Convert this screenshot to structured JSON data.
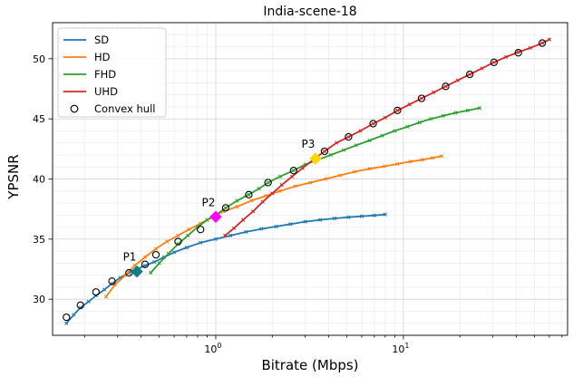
{
  "chart_data": {
    "type": "line",
    "title": "India-scene-18",
    "xlabel": "Bitrate (Mbps)",
    "ylabel": "YPSNR",
    "xscale": "log",
    "xlim": [
      0.135,
      75
    ],
    "ylim": [
      27,
      53
    ],
    "xticks": [
      {
        "value": 1,
        "label": "10",
        "sup": "0"
      },
      {
        "value": 10,
        "label": "10",
        "sup": "1"
      }
    ],
    "yticks": [
      30,
      35,
      40,
      45,
      50
    ],
    "grid": true,
    "legend_position": "top-left",
    "series": [
      {
        "name": "SD",
        "color": "#1f77b4",
        "x": [
          0.16,
          0.175,
          0.19,
          0.21,
          0.23,
          0.255,
          0.28,
          0.31,
          0.345,
          0.38,
          0.42,
          0.47,
          0.53,
          0.6,
          0.7,
          0.83,
          1.0,
          1.2,
          1.45,
          1.75,
          2.1,
          2.5,
          3.0,
          3.6,
          4.3,
          5.1,
          6.0,
          7.0,
          8.0
        ],
        "y": [
          28.0,
          28.7,
          29.3,
          29.8,
          30.3,
          30.8,
          31.3,
          31.8,
          32.2,
          32.5,
          32.8,
          33.1,
          33.5,
          33.9,
          34.3,
          34.7,
          35.0,
          35.3,
          35.6,
          35.85,
          36.05,
          36.25,
          36.45,
          36.6,
          36.72,
          36.82,
          36.9,
          36.97,
          37.05
        ]
      },
      {
        "name": "HD",
        "color": "#ff7f0e",
        "x": [
          0.26,
          0.29,
          0.33,
          0.37,
          0.42,
          0.48,
          0.55,
          0.63,
          0.72,
          0.83,
          0.95,
          1.1,
          1.3,
          1.55,
          1.85,
          2.2,
          2.65,
          3.2,
          3.85,
          4.6,
          5.5,
          6.6,
          7.9,
          9.3,
          10.9,
          12.6,
          14.3,
          16.0
        ],
        "y": [
          30.2,
          31.2,
          32.0,
          32.8,
          33.5,
          34.2,
          34.8,
          35.3,
          35.8,
          36.3,
          36.8,
          37.3,
          37.7,
          38.2,
          38.6,
          39.0,
          39.4,
          39.7,
          40.0,
          40.3,
          40.6,
          40.85,
          41.05,
          41.25,
          41.45,
          41.6,
          41.75,
          41.9
        ]
      },
      {
        "name": "FHD",
        "color": "#2ca02c",
        "x": [
          0.45,
          0.5,
          0.56,
          0.63,
          0.71,
          0.8,
          0.9,
          1.0,
          1.13,
          1.3,
          1.5,
          1.7,
          1.9,
          2.2,
          2.6,
          3.0,
          3.5,
          4.1,
          4.8,
          5.6,
          6.6,
          7.7,
          9.0,
          10.5,
          12.2,
          14.0,
          16.3,
          19.0,
          22.0,
          25.5
        ],
        "y": [
          32.2,
          33.0,
          33.8,
          34.6,
          35.3,
          36.0,
          36.6,
          37.0,
          37.6,
          38.2,
          38.7,
          39.2,
          39.7,
          40.2,
          40.7,
          41.2,
          41.6,
          42.0,
          42.4,
          42.8,
          43.2,
          43.6,
          44.0,
          44.35,
          44.7,
          45.0,
          45.25,
          45.5,
          45.7,
          45.9
        ]
      },
      {
        "name": "UHD",
        "color": "#d62728",
        "x": [
          1.12,
          1.25,
          1.4,
          1.58,
          1.78,
          2.0,
          2.25,
          2.55,
          2.9,
          3.3,
          3.8,
          4.4,
          5.1,
          5.9,
          6.9,
          8.0,
          9.3,
          10.8,
          12.5,
          14.5,
          16.8,
          19.5,
          22.6,
          26.2,
          30.4,
          35.3,
          41.0,
          47.5,
          55.0,
          60.0
        ],
        "y": [
          35.3,
          35.9,
          36.6,
          37.3,
          38.1,
          38.8,
          39.5,
          40.2,
          40.9,
          41.6,
          42.3,
          43.0,
          43.5,
          44.0,
          44.6,
          45.1,
          45.7,
          46.2,
          46.7,
          47.2,
          47.7,
          48.2,
          48.7,
          49.2,
          49.7,
          50.15,
          50.55,
          50.9,
          51.3,
          51.6
        ]
      }
    ],
    "convex_hull": {
      "name": "Convex hull",
      "x": [
        0.16,
        0.19,
        0.23,
        0.28,
        0.345,
        0.42,
        0.48,
        0.63,
        0.83,
        1.13,
        1.5,
        1.9,
        2.6,
        3.8,
        5.1,
        6.9,
        9.3,
        12.5,
        16.8,
        22.6,
        30.4,
        41.0,
        55.0
      ],
      "y": [
        28.5,
        29.5,
        30.6,
        31.5,
        32.2,
        32.9,
        33.7,
        34.8,
        35.8,
        37.6,
        38.7,
        39.7,
        40.7,
        42.3,
        43.5,
        44.6,
        45.7,
        46.7,
        47.7,
        48.7,
        49.7,
        50.5,
        51.3
      ]
    },
    "points": [
      {
        "label": "P1",
        "x": 0.38,
        "y": 32.3,
        "color": "#0f7e87"
      },
      {
        "label": "P2",
        "x": 1.0,
        "y": 36.85,
        "color": "#ff00ff"
      },
      {
        "label": "P3",
        "x": 3.4,
        "y": 41.7,
        "color": "#ffd700"
      }
    ]
  }
}
